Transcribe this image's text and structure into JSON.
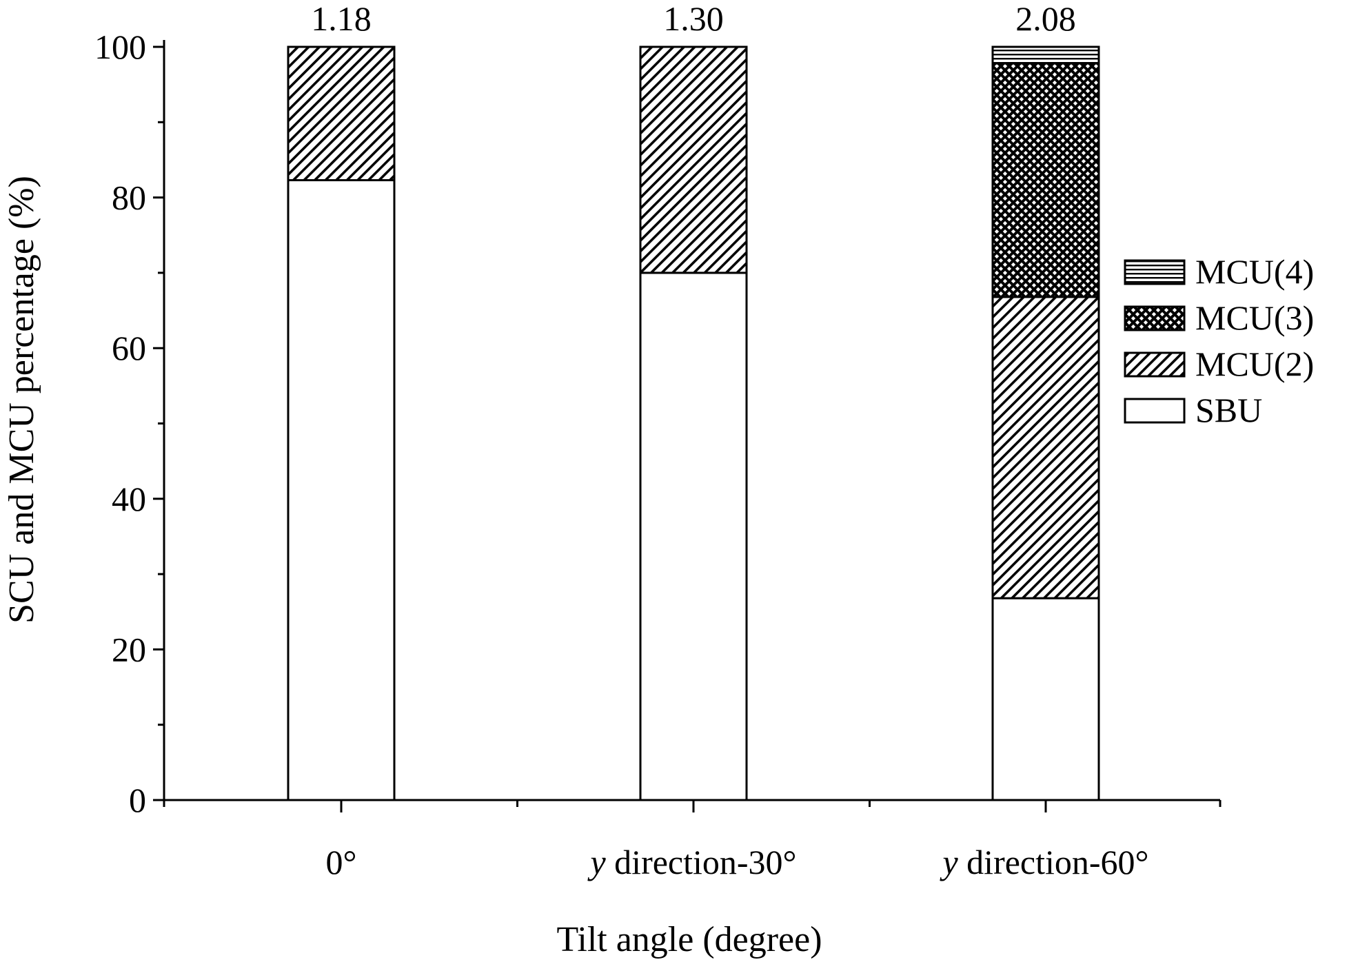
{
  "chart_data": {
    "type": "bar",
    "stacked": true,
    "xlabel": "Tilt angle (degree)",
    "ylabel": "SCU and MCU percentage (%)",
    "ylim": [
      0,
      100
    ],
    "yticks": [
      "0",
      "20",
      "40",
      "60",
      "80",
      "100"
    ],
    "categories": [
      {
        "prefix": "",
        "text": "0°"
      },
      {
        "prefix": "y",
        "text": " direction-30°"
      },
      {
        "prefix": "y",
        "text": " direction-60°"
      }
    ],
    "top_labels": [
      "1.18",
      "1.30",
      "2.08"
    ],
    "legend_position": "right",
    "series": [
      {
        "name": "SBU",
        "pattern": "blank",
        "values": [
          82.3,
          70.0,
          26.8
        ]
      },
      {
        "name": "MCU(2)",
        "pattern": "diagonal",
        "values": [
          17.7,
          30.0,
          40.0
        ]
      },
      {
        "name": "MCU(3)",
        "pattern": "crosshatch",
        "values": [
          0,
          0,
          31.0
        ]
      },
      {
        "name": "MCU(4)",
        "pattern": "horizontal",
        "values": [
          0,
          0,
          2.2
        ]
      }
    ],
    "legend_order": [
      "MCU(4)",
      "MCU(3)",
      "MCU(2)",
      "SBU"
    ]
  }
}
